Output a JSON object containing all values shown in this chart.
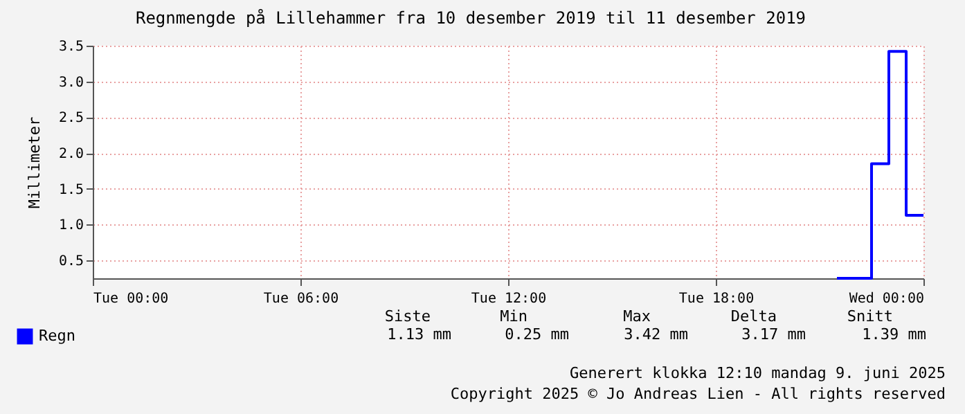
{
  "chart_data": {
    "type": "step",
    "title": "Regnmengde på Lillehammer fra 10 desember 2019 til 11 desember 2019",
    "ylabel": "Millimeter",
    "x": [
      "2019-12-10T21:30",
      "2019-12-10T22:30",
      "2019-12-10T23:00",
      "2019-12-10T23:30",
      "2019-12-11T00:00"
    ],
    "series": [
      {
        "name": "Regn",
        "color": "#0000ff",
        "values": [
          0.25,
          1.85,
          3.42,
          1.13,
          1.13
        ]
      }
    ],
    "xlim": [
      "2019-12-10T00:00",
      "2019-12-11T00:00"
    ],
    "xticks": [
      {
        "value": "2019-12-10T00:00",
        "label": "Tue 00:00"
      },
      {
        "value": "2019-12-10T06:00",
        "label": "Tue 06:00"
      },
      {
        "value": "2019-12-10T12:00",
        "label": "Tue 12:00"
      },
      {
        "value": "2019-12-10T18:00",
        "label": "Tue 18:00"
      },
      {
        "value": "2019-12-11T00:00",
        "label": "Wed 00:00"
      }
    ],
    "ylim": [
      0.25,
      3.5
    ],
    "yticks": [
      {
        "value": 0.5,
        "label": "0.5"
      },
      {
        "value": 1.0,
        "label": "1.0"
      },
      {
        "value": 1.5,
        "label": "1.5"
      },
      {
        "value": 2.0,
        "label": "2.0"
      },
      {
        "value": 2.5,
        "label": "2.5"
      },
      {
        "value": 3.0,
        "label": "3.0"
      },
      {
        "value": 3.5,
        "label": "3.5"
      }
    ],
    "grid": true,
    "legend": "bottom left",
    "line_style": "solid",
    "annotations": [
      "Siste",
      "Min",
      "Max",
      "Delta",
      "Snitt",
      "1.13 mm",
      "0.25 mm",
      "3.42 mm",
      "3.17 mm",
      "1.39 mm",
      "Generert klokka 12:10 mandag 9. juni 2025",
      "Copyright 2025 © Jo Andreas Lien - All rights reserved"
    ]
  }
}
